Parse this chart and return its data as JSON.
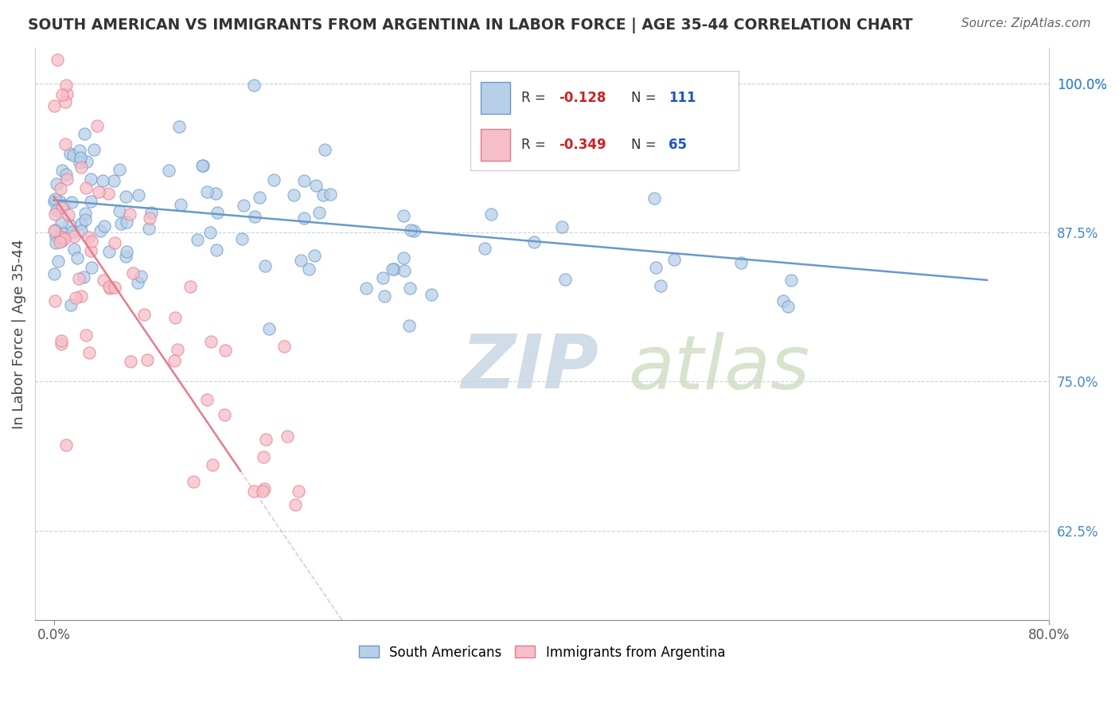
{
  "title": "SOUTH AMERICAN VS IMMIGRANTS FROM ARGENTINA IN LABOR FORCE | AGE 35-44 CORRELATION CHART",
  "source": "Source: ZipAtlas.com",
  "ylabel": "In Labor Force | Age 35-44",
  "xlim": [
    0.0,
    80.0
  ],
  "ylim": [
    55.0,
    103.0
  ],
  "yticks": [
    62.5,
    75.0,
    87.5,
    100.0
  ],
  "ytick_labels": [
    "62.5%",
    "75.0%",
    "87.5%",
    "100.0%"
  ],
  "blue_color": "#b8cfe8",
  "blue_edge": "#6699cc",
  "pink_color": "#f5bec8",
  "pink_edge": "#e87a8a",
  "blue_R": -0.128,
  "blue_N": 111,
  "pink_R": -0.349,
  "pink_N": 65,
  "background_color": "#ffffff",
  "grid_color": "#c8d4e0",
  "title_color": "#333333",
  "axis_label_color": "#444444",
  "tick_color_right": "#4488cc",
  "legend_R_color": "#cc2222",
  "legend_N_color": "#2255bb",
  "source_color": "#666666",
  "watermark_zip_color": "#d0dce8",
  "watermark_atlas_color": "#c8d8b8"
}
